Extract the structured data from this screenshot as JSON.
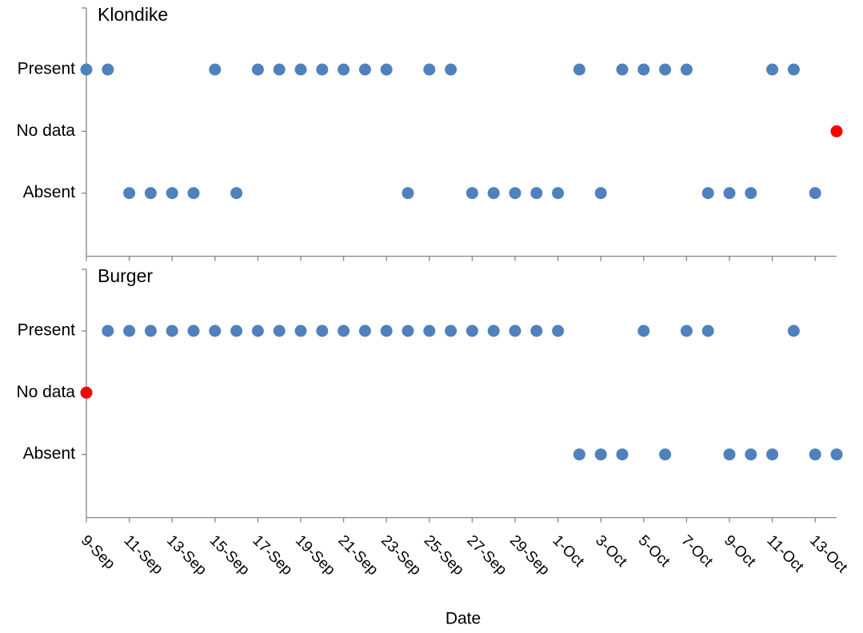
{
  "chart_data": {
    "type": "dot",
    "xlabel": "Date",
    "categories": [
      "9-Sep",
      null,
      "11-Sep",
      null,
      "13-Sep",
      null,
      "15-Sep",
      null,
      "17-Sep",
      null,
      "19-Sep",
      null,
      "21-Sep",
      null,
      "23-Sep",
      null,
      "25-Sep",
      null,
      "27-Sep",
      null,
      "29-Sep",
      null,
      "1-Oct",
      null,
      "3-Oct",
      null,
      "5-Oct",
      null,
      "7-Oct",
      null,
      "9-Oct",
      null,
      "11-Oct",
      null,
      "13-Oct",
      null
    ],
    "y_categories": [
      "Present",
      "No data",
      "Absent"
    ],
    "colors": [
      "#4f81bd",
      "#ff0000",
      "#4f81bd"
    ],
    "panels": [
      {
        "title": "Klondike",
        "values": [
          "Present",
          "Present",
          "Absent",
          "Absent",
          "Absent",
          "Absent",
          "Present",
          "Absent",
          "Present",
          "Present",
          "Present",
          "Present",
          "Present",
          "Present",
          "Present",
          "Absent",
          "Present",
          "Present",
          "Absent",
          "Absent",
          "Absent",
          "Absent",
          "Absent",
          "Present",
          "Absent",
          "Present",
          "Present",
          "Present",
          "Present",
          "Absent",
          "Absent",
          "Absent",
          "Present",
          "Present",
          "Absent",
          "No data"
        ]
      },
      {
        "title": "Burger",
        "values": [
          "No data",
          "Present",
          "Present",
          "Present",
          "Present",
          "Present",
          "Present",
          "Present",
          "Present",
          "Present",
          "Present",
          "Present",
          "Present",
          "Present",
          "Present",
          "Present",
          "Present",
          "Present",
          "Present",
          "Present",
          "Present",
          "Present",
          "Present",
          "Absent",
          "Absent",
          "Absent",
          "Present",
          "Absent",
          "Present",
          "Present",
          "Absent",
          "Absent",
          "Absent",
          "Present",
          "Absent",
          "Absent"
        ]
      }
    ]
  }
}
